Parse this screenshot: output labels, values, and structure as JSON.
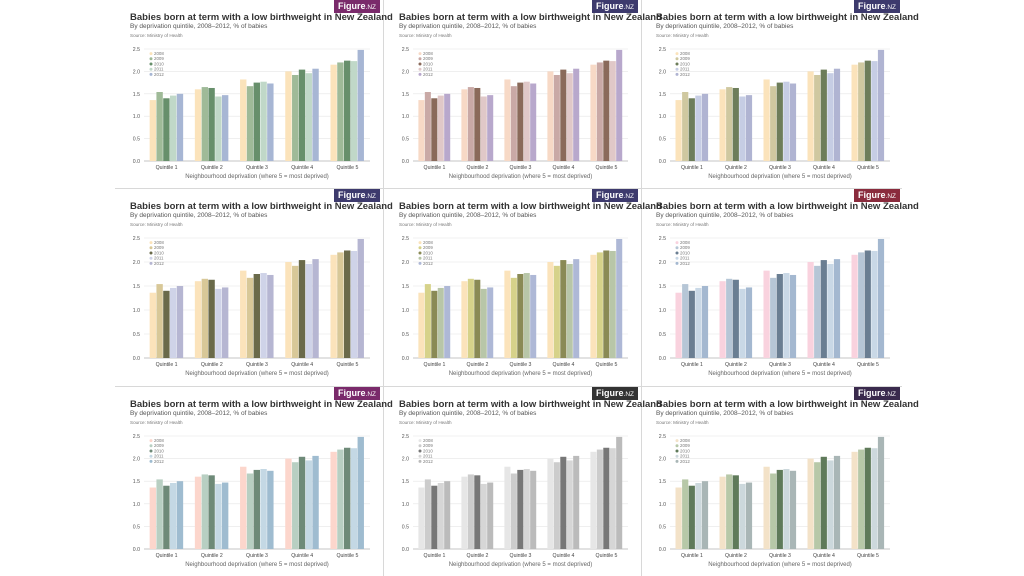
{
  "logo": {
    "text": "Figure",
    "suffix": ".NZ"
  },
  "chart_data": {
    "type": "bar",
    "title": "Babies born at term with a low birthweight in New Zealand",
    "subtitle": "By deprivation quintile, 2008–2012, % of babies",
    "source": "Source: Ministry of Health",
    "xlabel": "Neighbourhood deprivation (where 5 = most deprived)",
    "ylabel": "",
    "ylim": [
      0,
      2.5
    ],
    "yticks": [
      "0.0",
      "0.5",
      "1.0",
      "1.5",
      "2.0",
      "2.5"
    ],
    "grid": true,
    "legend_position": "top-left",
    "categories": [
      "Quintile 1",
      "Quintile 2",
      "Quintile 3",
      "Quintile 4",
      "Quintile 5"
    ],
    "series": [
      {
        "name": "2008",
        "values": [
          1.36,
          1.6,
          1.82,
          2.0,
          2.15
        ]
      },
      {
        "name": "2009",
        "values": [
          1.54,
          1.65,
          1.67,
          1.92,
          2.2
        ]
      },
      {
        "name": "2010",
        "values": [
          1.4,
          1.63,
          1.75,
          2.04,
          2.24
        ]
      },
      {
        "name": "2011",
        "values": [
          1.46,
          1.44,
          1.77,
          1.96,
          2.23
        ]
      },
      {
        "name": "2012",
        "values": [
          1.5,
          1.47,
          1.73,
          2.06,
          2.48
        ]
      }
    ]
  },
  "variants": [
    {
      "colors": [
        "#fbe3bb",
        "#9fba98",
        "#678f6b",
        "#c0d8c8",
        "#a7b6d4"
      ],
      "logo_color": "#7a2a6b"
    },
    {
      "colors": [
        "#f7d9c6",
        "#c9a9a6",
        "#8a6a5a",
        "#e0c8c8",
        "#b8a8cc"
      ],
      "logo_color": "#3d3a6d"
    },
    {
      "colors": [
        "#fbe3bb",
        "#cfc8a0",
        "#6d7d5a",
        "#c6cde4",
        "#b0b4d2"
      ],
      "logo_color": "#3d3a6d"
    },
    {
      "colors": [
        "#fbe3bb",
        "#d8c898",
        "#6a6a4a",
        "#cfd3e8",
        "#b6b6d2"
      ],
      "logo_color": "#3d3a6d"
    },
    {
      "colors": [
        "#fbe3bb",
        "#d6d28a",
        "#8a8a55",
        "#b8c6a8",
        "#aeb8d6"
      ],
      "logo_color": "#3d3a6d"
    },
    {
      "colors": [
        "#f9d2de",
        "#b6c6d6",
        "#6a7e92",
        "#c9d8e6",
        "#a4b8d0"
      ],
      "logo_color": "#8a2b3d"
    },
    {
      "colors": [
        "#fcd6cc",
        "#b8cfc2",
        "#6e8a78",
        "#c4d8e4",
        "#9fbcd0"
      ],
      "logo_color": "#7a2a6b"
    },
    {
      "colors": [
        "#e6e6e6",
        "#cccccc",
        "#777777",
        "#d6d6d6",
        "#bbbbbb"
      ],
      "logo_color": "#333333"
    },
    {
      "colors": [
        "#f3e2c8",
        "#b7c8a8",
        "#5f7a5a",
        "#ccd8dc",
        "#a9b6b6"
      ],
      "logo_color": "#3a2a4d"
    }
  ]
}
